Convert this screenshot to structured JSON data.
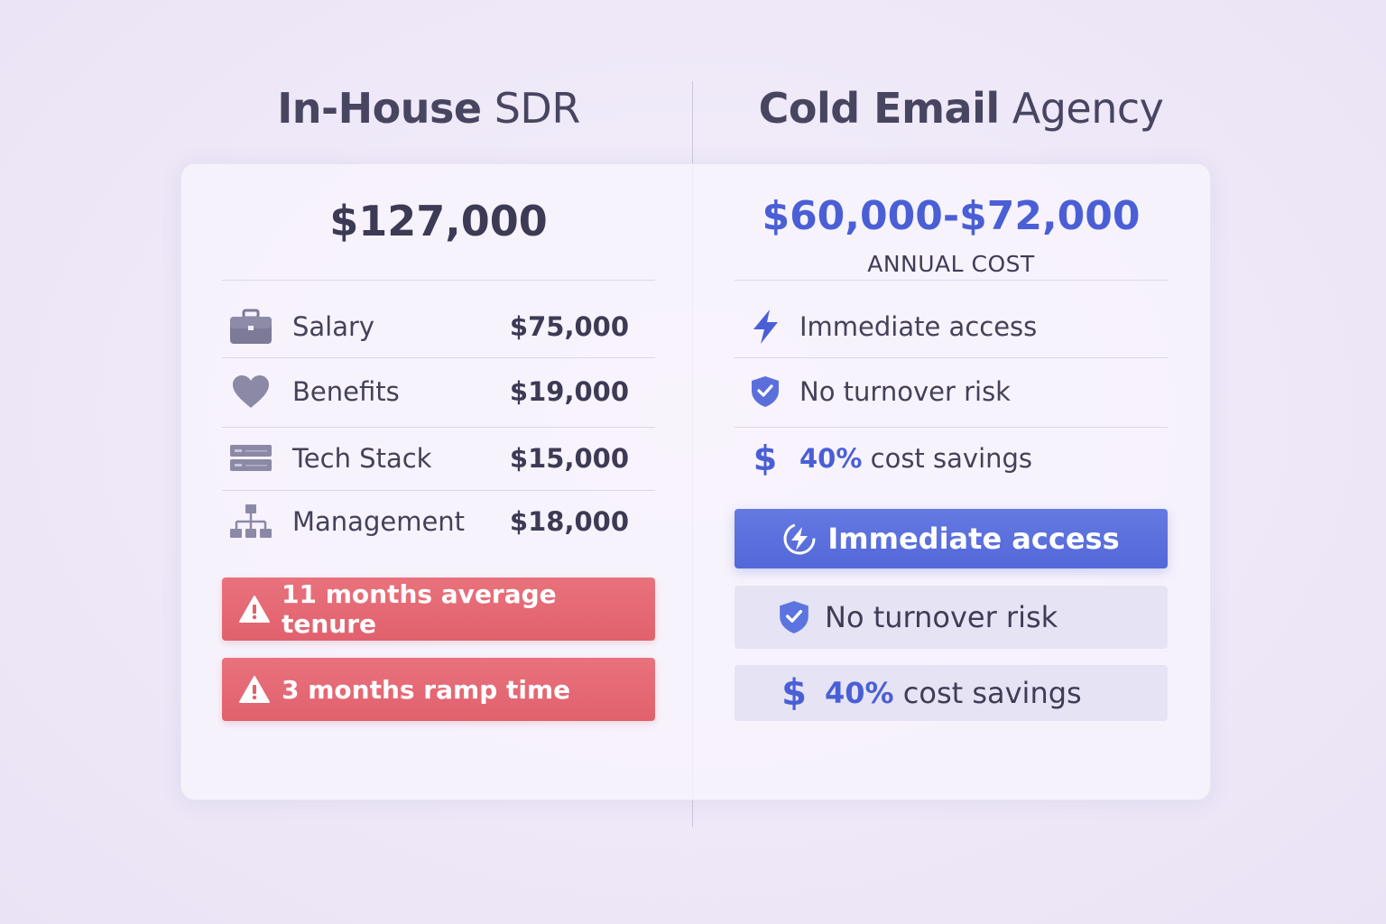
{
  "left": {
    "title_bold": "In-House",
    "title_light": "SDR",
    "total_cost": "$127,000",
    "items": [
      {
        "icon": "briefcase-icon",
        "label": "Salary",
        "amount": "$75,000"
      },
      {
        "icon": "heart-icon",
        "label": "Benefits",
        "amount": "$19,000"
      },
      {
        "icon": "server-icon",
        "label": "Tech Stack",
        "amount": "$15,000"
      },
      {
        "icon": "org-chart-icon",
        "label": "Management",
        "amount": "$18,000"
      }
    ],
    "warnings": [
      {
        "icon": "warning-icon",
        "text": "11 months average tenure"
      },
      {
        "icon": "warning-icon",
        "text": "3 months ramp time"
      }
    ]
  },
  "right": {
    "title_bold": "Cold Email",
    "title_light": "Agency",
    "total_cost": "$60,000-$72,000",
    "cost_caption": "ANNUAL COST",
    "benefits": [
      {
        "icon": "lightning-icon",
        "text": "Immediate access"
      },
      {
        "icon": "shield-check-icon",
        "text": "No turnover risk"
      },
      {
        "icon": "dollar-icon",
        "accent": "40%",
        "text": "cost savings"
      }
    ],
    "cta": {
      "icon": "lightning-icon",
      "text": "Immediate access"
    },
    "highlights": [
      {
        "icon": "shield-check-icon",
        "text": "No turnover risk"
      },
      {
        "icon": "dollar-icon",
        "accent": "40%",
        "text": "cost savings"
      }
    ]
  },
  "colors": {
    "accent_blue": "#4a5fd6",
    "warning_red": "#e1616d",
    "text_dark": "#3d3a55"
  }
}
